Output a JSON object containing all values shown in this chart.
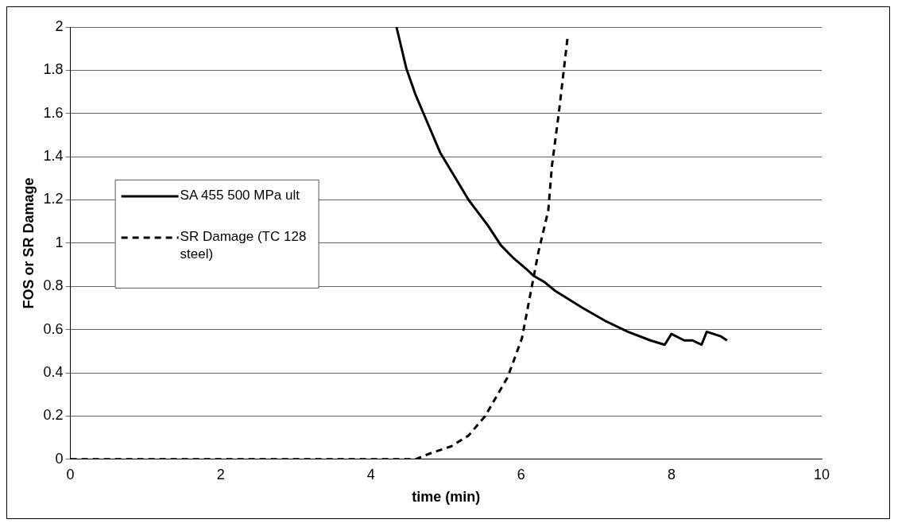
{
  "chart_data": {
    "type": "line",
    "xlabel": "time (min)",
    "ylabel": "FOS or SR Damage",
    "xlim": [
      0,
      10
    ],
    "xticks": [
      0,
      2,
      4,
      6,
      8,
      10
    ],
    "ylim": [
      0,
      2
    ],
    "yticks": [
      0,
      0.2,
      0.4,
      0.6,
      0.8,
      1,
      1.2,
      1.4,
      1.6,
      1.8,
      2
    ],
    "grid": "y",
    "legend": "left",
    "marker": "none",
    "series": [
      {
        "name": "SA 455 500 MPa ult",
        "color": "#000000",
        "line_style": "solid",
        "x": [
          4.34,
          4.47,
          4.59,
          4.7,
          4.92,
          5.3,
          5.56,
          5.73,
          5.9,
          6.07,
          6.16,
          6.31,
          6.45,
          6.82,
          7.12,
          7.42,
          7.72,
          7.91,
          8.0,
          8.17,
          8.28,
          8.4,
          8.47,
          8.65,
          8.74
        ],
        "values": [
          2.0,
          1.81,
          1.69,
          1.6,
          1.42,
          1.2,
          1.08,
          0.99,
          0.93,
          0.88,
          0.85,
          0.82,
          0.78,
          0.7,
          0.64,
          0.59,
          0.55,
          0.53,
          0.58,
          0.55,
          0.55,
          0.53,
          0.59,
          0.57,
          0.55
        ]
      },
      {
        "name": "SR Damage (TC 128 steel)",
        "color": "#000000",
        "line_style": "dashed",
        "x": [
          0,
          4.59,
          4.81,
          5.07,
          5.3,
          5.52,
          5.67,
          5.82,
          6.01,
          6.12,
          6.23,
          6.36,
          6.41,
          6.5,
          6.62
        ],
        "values": [
          0,
          0,
          0.03,
          0.06,
          0.11,
          0.2,
          0.29,
          0.38,
          0.56,
          0.76,
          0.96,
          1.15,
          1.36,
          1.6,
          1.96
        ]
      }
    ]
  }
}
